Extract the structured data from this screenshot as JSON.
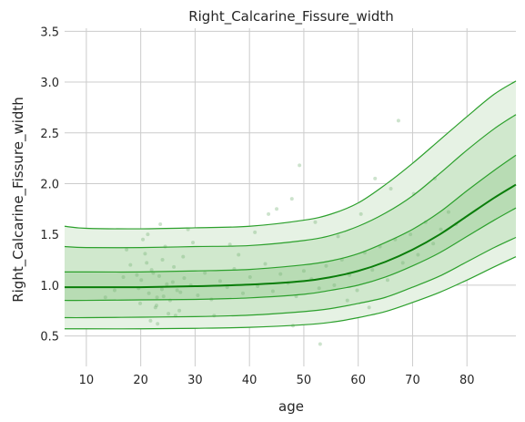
{
  "chart_data": {
    "type": "line",
    "title": "Right_Calcarine_Fissure_width",
    "xlabel": "age",
    "ylabel": "Right_Calcarine_Fissure_width",
    "xlim": [
      6,
      89
    ],
    "ylim": [
      0.2,
      3.53
    ],
    "xticks": [
      10,
      20,
      30,
      40,
      50,
      60,
      70,
      80
    ],
    "yticks": [
      0.5,
      1.0,
      1.5,
      2.0,
      2.5,
      3.0
    ],
    "grid": true,
    "colors": {
      "line": "#2ca02c",
      "median": "#0a7d0a",
      "band_outer": "#e6f2e4",
      "band_mid": "#d0e8cd",
      "band_inner": "#b8dcb4",
      "points": "#6fb06f"
    },
    "x": [
      6,
      10,
      20,
      30,
      40,
      50,
      55,
      60,
      65,
      70,
      75,
      80,
      85,
      89
    ],
    "series": [
      {
        "values": [
          0.57,
          0.57,
          0.57,
          0.575,
          0.585,
          0.61,
          0.635,
          0.68,
          0.74,
          0.83,
          0.93,
          1.05,
          1.18,
          1.28
        ]
      },
      {
        "values": [
          0.68,
          0.68,
          0.685,
          0.69,
          0.705,
          0.74,
          0.77,
          0.82,
          0.88,
          0.98,
          1.09,
          1.23,
          1.37,
          1.47
        ]
      },
      {
        "values": [
          0.85,
          0.85,
          0.855,
          0.86,
          0.875,
          0.91,
          0.95,
          1.0,
          1.08,
          1.19,
          1.32,
          1.48,
          1.64,
          1.76
        ]
      },
      {
        "values": [
          0.98,
          0.98,
          0.98,
          0.99,
          1.005,
          1.04,
          1.08,
          1.14,
          1.23,
          1.35,
          1.5,
          1.68,
          1.86,
          1.99
        ]
      },
      {
        "values": [
          1.13,
          1.13,
          1.13,
          1.14,
          1.155,
          1.2,
          1.24,
          1.31,
          1.42,
          1.55,
          1.72,
          1.93,
          2.13,
          2.28
        ]
      },
      {
        "values": [
          1.38,
          1.37,
          1.37,
          1.38,
          1.39,
          1.44,
          1.49,
          1.58,
          1.71,
          1.88,
          2.1,
          2.33,
          2.54,
          2.68
        ]
      },
      {
        "values": [
          1.58,
          1.56,
          1.555,
          1.565,
          1.58,
          1.64,
          1.7,
          1.81,
          1.99,
          2.2,
          2.43,
          2.66,
          2.88,
          3.01
        ]
      }
    ],
    "scatter": {
      "x": [
        20.1,
        21.5,
        22.3,
        23.0,
        19.6,
        24.8,
        25.4,
        26.1,
        27.3,
        28.0,
        22.7,
        21.1,
        23.9,
        20.8,
        24.2,
        25.9,
        22.0,
        19.9,
        23.4,
        26.7,
        29.2,
        30.5,
        31.8,
        33.0,
        34.6,
        35.9,
        37.2,
        38.8,
        40.1,
        41.5,
        42.9,
        44.3,
        45.7,
        47.1,
        48.6,
        50.0,
        51.4,
        52.8,
        54.1,
        55.6,
        57.0,
        58.4,
        59.8,
        61.2,
        62.6,
        64.0,
        65.4,
        66.8,
        68.2,
        69.6,
        71.0,
        72.4,
        73.8,
        75.2,
        76.6,
        78.0,
        15.2,
        16.8,
        18.1,
        13.5,
        17.4,
        28.7,
        29.6,
        21.8,
        23.6,
        25.1,
        27.8,
        20.4,
        22.9,
        24.5,
        26.4,
        21.3,
        23.1,
        24.0,
        27.1,
        19.3,
        43.5,
        47.8,
        49.2,
        52.1,
        56.3,
        60.5,
        63.1,
        67.4,
        70.2,
        74.1,
        48.0,
        53.0,
        58.0,
        38.0,
        33.5,
        36.4,
        41.0,
        45.0,
        62.0,
        66.0
      ],
      "y": [
        1.05,
        0.92,
        1.12,
        0.88,
        0.97,
        1.01,
        0.85,
        1.18,
        0.93,
        1.07,
        0.78,
        1.22,
        0.96,
        1.31,
        0.89,
        1.03,
        1.15,
        0.82,
        1.09,
        0.95,
        1.0,
        0.9,
        1.12,
        0.86,
        1.04,
        0.98,
        1.16,
        0.92,
        1.08,
        0.99,
        1.21,
        0.94,
        1.11,
        1.02,
        0.89,
        1.14,
        1.06,
        0.97,
        1.19,
        1.0,
        1.25,
        1.1,
        0.95,
        1.32,
        1.15,
        1.38,
        1.05,
        1.45,
        1.22,
        1.5,
        1.3,
        1.62,
        1.41,
        1.55,
        1.72,
        1.6,
        0.95,
        1.08,
        1.2,
        0.88,
        1.35,
        1.55,
        1.42,
        0.65,
        1.6,
        0.72,
        1.28,
        1.45,
        0.8,
        1.38,
        0.7,
        1.5,
        0.62,
        1.25,
        0.75,
        1.1,
        1.7,
        1.85,
        2.18,
        1.62,
        1.48,
        1.7,
        2.05,
        2.62,
        1.9,
        2.05,
        0.6,
        0.42,
        0.85,
        1.3,
        0.7,
        1.4,
        1.52,
        1.75,
        0.78,
        1.95
      ]
    }
  }
}
